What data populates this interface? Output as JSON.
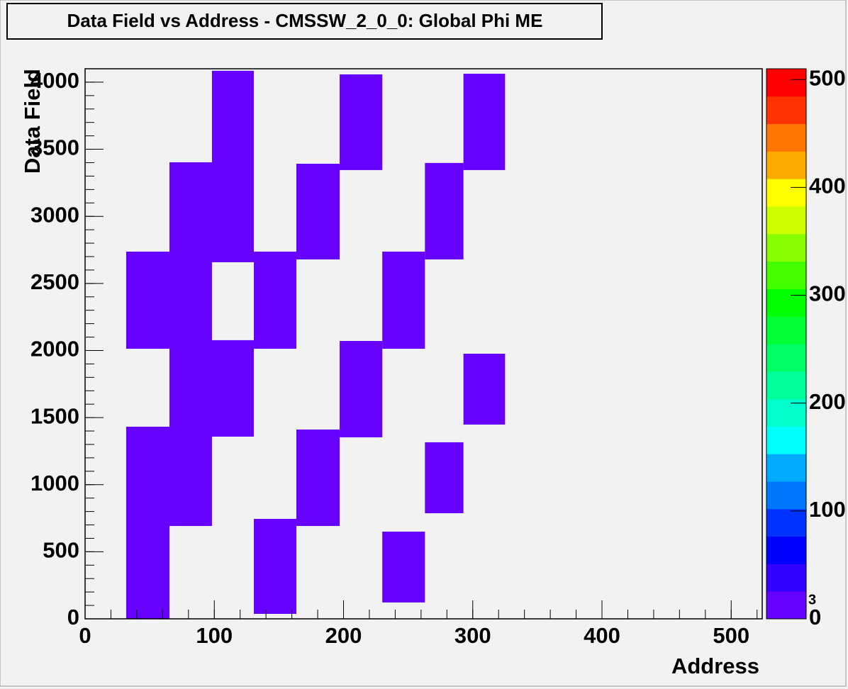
{
  "chart_data": {
    "type": "heatmap2d",
    "title": "Data Field vs Address - CMSSW_2_0_0: Global Phi ME",
    "x_label": "Address",
    "y_label": "Data Field",
    "xlim": [
      0,
      524
    ],
    "ylim": [
      0,
      4100
    ],
    "zlim": [
      0,
      510
    ],
    "xticks": [
      0,
      100,
      200,
      300,
      400,
      500
    ],
    "yticks": [
      0,
      500,
      1000,
      1500,
      2000,
      2500,
      3000,
      3500,
      4000
    ],
    "zticks": [
      0,
      100,
      200,
      300,
      400,
      500
    ],
    "z_exponent": 3,
    "x_minor_step": 20,
    "y_minor_step": 100,
    "palette": [
      "#6600ff",
      "#3300ff",
      "#0000ff",
      "#0033ff",
      "#0077ff",
      "#00aaff",
      "#00ffff",
      "#00ffcc",
      "#00ff99",
      "#00ff66",
      "#00ff33",
      "#00ff00",
      "#44ff00",
      "#88ff00",
      "#ccff00",
      "#ffff00",
      "#ffaa00",
      "#ff7700",
      "#ff3300",
      "#ff0000"
    ],
    "cells": [
      {
        "x": [
          31.8,
          65.3
        ],
        "y": [
          0,
          1432
        ],
        "z": 10
      },
      {
        "x": [
          31.8,
          65.3
        ],
        "y": [
          2013,
          2737
        ],
        "z": 10
      },
      {
        "x": [
          65.3,
          98.2
        ],
        "y": [
          692,
          3403
        ],
        "z": 10
      },
      {
        "x": [
          98.2,
          130.6
        ],
        "y": [
          2658,
          4085
        ],
        "z": 10
      },
      {
        "x": [
          98.2,
          130.6
        ],
        "y": [
          1358,
          2077
        ],
        "z": 10
      },
      {
        "x": [
          130.6,
          163.5
        ],
        "y": [
          2013,
          2737
        ],
        "z": 10
      },
      {
        "x": [
          130.6,
          163.5
        ],
        "y": [
          37,
          745
        ],
        "z": 10
      },
      {
        "x": [
          163.5,
          197
        ],
        "y": [
          2679,
          3392
        ],
        "z": 10
      },
      {
        "x": [
          163.5,
          197
        ],
        "y": [
          692,
          1411
        ],
        "z": 10
      },
      {
        "x": [
          197,
          230
        ],
        "y": [
          3345,
          4058
        ],
        "z": 10
      },
      {
        "x": [
          197,
          230
        ],
        "y": [
          1353,
          2071
        ],
        "z": 10
      },
      {
        "x": [
          230,
          263
        ],
        "y": [
          2013,
          2737
        ],
        "z": 10
      },
      {
        "x": [
          230,
          263
        ],
        "y": [
          122,
          650
        ],
        "z": 10
      },
      {
        "x": [
          263,
          292.8
        ],
        "y": [
          2679,
          3398
        ],
        "z": 10
      },
      {
        "x": [
          263,
          292.8
        ],
        "y": [
          787,
          1316
        ],
        "z": 10
      },
      {
        "x": [
          292.8,
          325
        ],
        "y": [
          3345,
          4063
        ],
        "z": 10
      },
      {
        "x": [
          292.8,
          325
        ],
        "y": [
          1448,
          1976
        ],
        "z": 10
      }
    ]
  }
}
